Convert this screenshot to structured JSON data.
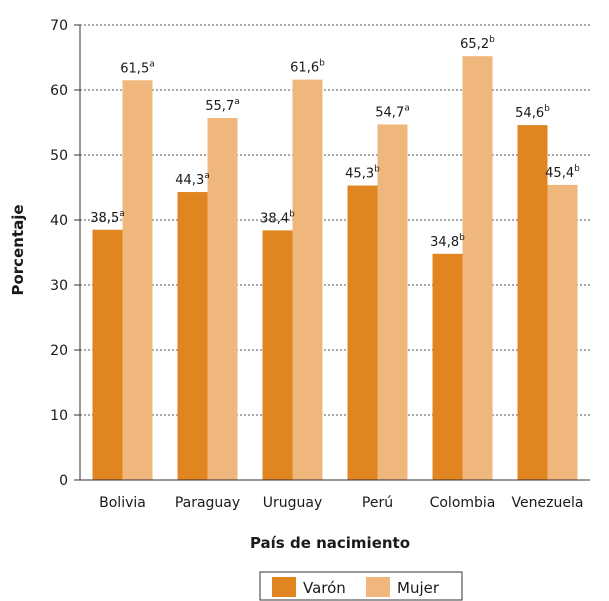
{
  "chart_data": {
    "type": "bar",
    "xlabel": "País de nacimiento",
    "ylabel": "Porcentaje",
    "categories": [
      "Bolivia",
      "Paraguay",
      "Uruguay",
      "Perú",
      "Colombia",
      "Venezuela"
    ],
    "series": [
      {
        "name": "Varón",
        "color": "#e08520",
        "values": [
          38.5,
          44.3,
          38.4,
          45.3,
          34.8,
          54.6
        ],
        "labels": [
          "38,5",
          "44,3",
          "38,4",
          "45,3",
          "34,8",
          "54,6"
        ],
        "superscripts": [
          "a",
          "a",
          "b",
          "b",
          "b",
          "b"
        ]
      },
      {
        "name": "Mujer",
        "color": "#f0b77c",
        "values": [
          61.5,
          55.7,
          61.6,
          54.7,
          65.2,
          45.4
        ],
        "labels": [
          "61,5",
          "55,7",
          "61,6",
          "54,7",
          "65,2",
          "45,4"
        ],
        "superscripts": [
          "a",
          "a",
          "b",
          "a",
          "b",
          "b"
        ]
      }
    ],
    "ylim": [
      0,
      70
    ],
    "yticks": [
      0,
      10,
      20,
      30,
      40,
      50,
      60,
      70
    ],
    "grid": "horizontal-dotted",
    "legend_position": "bottom"
  }
}
